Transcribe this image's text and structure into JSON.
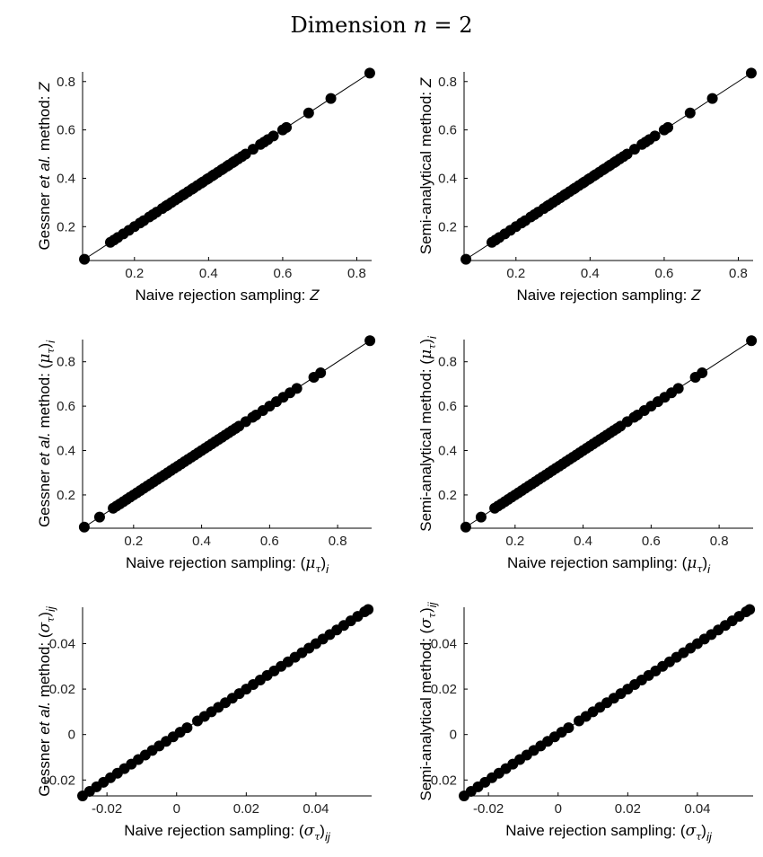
{
  "figure": {
    "title_prefix": "Dimension ",
    "title_var": "n",
    "title_suffix": " = 2"
  },
  "chart_data": [
    {
      "type": "scatter",
      "id": "p1",
      "xlabel": "Naive rejection sampling: Z",
      "ylabel": "Gessner et al. method: Z",
      "xlim": [
        0.06,
        0.84
      ],
      "ylim": [
        0.06,
        0.84
      ],
      "xticks": [
        0.2,
        0.4,
        0.6,
        0.8
      ],
      "yticks": [
        0.2,
        0.4,
        0.6,
        0.8
      ],
      "xtick_labels": [
        "0.2",
        "0.4",
        "0.6",
        "0.8"
      ],
      "ytick_labels": [
        "0.2",
        "0.4",
        "0.6",
        "0.8"
      ],
      "reference_line": [
        [
          0.06,
          0.06
        ],
        [
          0.84,
          0.84
        ]
      ],
      "x": [
        0.065,
        0.135,
        0.145,
        0.155,
        0.17,
        0.185,
        0.2,
        0.215,
        0.225,
        0.24,
        0.25,
        0.26,
        0.275,
        0.285,
        0.29,
        0.3,
        0.31,
        0.32,
        0.33,
        0.335,
        0.345,
        0.355,
        0.36,
        0.37,
        0.38,
        0.385,
        0.395,
        0.4,
        0.41,
        0.415,
        0.425,
        0.435,
        0.44,
        0.45,
        0.455,
        0.465,
        0.47,
        0.48,
        0.49,
        0.5,
        0.52,
        0.54,
        0.55,
        0.56,
        0.575,
        0.6,
        0.61,
        0.67,
        0.73,
        0.835
      ],
      "y": [
        0.065,
        0.135,
        0.145,
        0.155,
        0.17,
        0.185,
        0.2,
        0.215,
        0.225,
        0.24,
        0.25,
        0.26,
        0.275,
        0.285,
        0.29,
        0.3,
        0.31,
        0.32,
        0.33,
        0.335,
        0.345,
        0.355,
        0.36,
        0.37,
        0.38,
        0.385,
        0.395,
        0.4,
        0.41,
        0.415,
        0.425,
        0.435,
        0.44,
        0.45,
        0.455,
        0.465,
        0.47,
        0.48,
        0.49,
        0.5,
        0.52,
        0.54,
        0.55,
        0.56,
        0.575,
        0.6,
        0.61,
        0.67,
        0.73,
        0.835
      ]
    },
    {
      "type": "scatter",
      "id": "p2",
      "xlabel": "Naive rejection sampling: Z",
      "ylabel": "Semi-analytical method: Z",
      "xlim": [
        0.06,
        0.84
      ],
      "ylim": [
        0.06,
        0.84
      ],
      "xticks": [
        0.2,
        0.4,
        0.6,
        0.8
      ],
      "yticks": [
        0.2,
        0.4,
        0.6,
        0.8
      ],
      "xtick_labels": [
        "0.2",
        "0.4",
        "0.6",
        "0.8"
      ],
      "ytick_labels": [
        "0.2",
        "0.4",
        "0.6",
        "0.8"
      ],
      "reference_line": [
        [
          0.06,
          0.06
        ],
        [
          0.84,
          0.84
        ]
      ],
      "x": [
        0.065,
        0.135,
        0.145,
        0.155,
        0.17,
        0.185,
        0.2,
        0.215,
        0.225,
        0.24,
        0.25,
        0.26,
        0.275,
        0.285,
        0.29,
        0.3,
        0.31,
        0.32,
        0.33,
        0.335,
        0.345,
        0.355,
        0.36,
        0.37,
        0.38,
        0.385,
        0.395,
        0.4,
        0.41,
        0.415,
        0.425,
        0.435,
        0.44,
        0.45,
        0.455,
        0.465,
        0.47,
        0.48,
        0.49,
        0.5,
        0.52,
        0.54,
        0.55,
        0.56,
        0.575,
        0.6,
        0.61,
        0.67,
        0.73,
        0.835
      ],
      "y": [
        0.065,
        0.135,
        0.145,
        0.155,
        0.17,
        0.185,
        0.2,
        0.215,
        0.225,
        0.24,
        0.25,
        0.26,
        0.275,
        0.285,
        0.29,
        0.3,
        0.31,
        0.32,
        0.33,
        0.335,
        0.345,
        0.355,
        0.36,
        0.37,
        0.38,
        0.385,
        0.395,
        0.4,
        0.41,
        0.415,
        0.425,
        0.435,
        0.44,
        0.45,
        0.455,
        0.465,
        0.47,
        0.48,
        0.49,
        0.5,
        0.52,
        0.54,
        0.55,
        0.56,
        0.575,
        0.6,
        0.61,
        0.67,
        0.73,
        0.835
      ]
    },
    {
      "type": "scatter",
      "id": "p3",
      "xlabel": "Naive rejection sampling: (μτ)i",
      "ylabel": "Gessner et al. method: (μτ)i",
      "xlim": [
        0.05,
        0.9
      ],
      "ylim": [
        0.05,
        0.9
      ],
      "xticks": [
        0.2,
        0.4,
        0.6,
        0.8
      ],
      "yticks": [
        0.2,
        0.4,
        0.6,
        0.8
      ],
      "xtick_labels": [
        "0.2",
        "0.4",
        "0.6",
        "0.8"
      ],
      "ytick_labels": [
        "0.2",
        "0.4",
        "0.6",
        "0.8"
      ],
      "reference_line": [
        [
          0.05,
          0.05
        ],
        [
          0.9,
          0.9
        ]
      ],
      "x": [
        0.055,
        0.1,
        0.14,
        0.15,
        0.16,
        0.17,
        0.18,
        0.19,
        0.2,
        0.21,
        0.22,
        0.23,
        0.24,
        0.25,
        0.26,
        0.27,
        0.28,
        0.29,
        0.3,
        0.31,
        0.32,
        0.33,
        0.34,
        0.35,
        0.36,
        0.37,
        0.38,
        0.39,
        0.4,
        0.41,
        0.42,
        0.43,
        0.44,
        0.45,
        0.46,
        0.47,
        0.48,
        0.49,
        0.5,
        0.51,
        0.53,
        0.55,
        0.56,
        0.58,
        0.6,
        0.62,
        0.64,
        0.66,
        0.68,
        0.73,
        0.75,
        0.895
      ],
      "y": [
        0.055,
        0.1,
        0.14,
        0.15,
        0.16,
        0.17,
        0.18,
        0.19,
        0.2,
        0.21,
        0.22,
        0.23,
        0.24,
        0.25,
        0.26,
        0.27,
        0.28,
        0.29,
        0.3,
        0.31,
        0.32,
        0.33,
        0.34,
        0.35,
        0.36,
        0.37,
        0.38,
        0.39,
        0.4,
        0.41,
        0.42,
        0.43,
        0.44,
        0.45,
        0.46,
        0.47,
        0.48,
        0.49,
        0.5,
        0.51,
        0.53,
        0.55,
        0.56,
        0.58,
        0.6,
        0.62,
        0.64,
        0.66,
        0.68,
        0.73,
        0.75,
        0.895
      ]
    },
    {
      "type": "scatter",
      "id": "p4",
      "xlabel": "Naive rejection sampling: (μτ)i",
      "ylabel": "Semi-analytical method: (μτ)i",
      "xlim": [
        0.05,
        0.9
      ],
      "ylim": [
        0.05,
        0.9
      ],
      "xticks": [
        0.2,
        0.4,
        0.6,
        0.8
      ],
      "yticks": [
        0.2,
        0.4,
        0.6,
        0.8
      ],
      "xtick_labels": [
        "0.2",
        "0.4",
        "0.6",
        "0.8"
      ],
      "ytick_labels": [
        "0.2",
        "0.4",
        "0.6",
        "0.8"
      ],
      "reference_line": [
        [
          0.05,
          0.05
        ],
        [
          0.9,
          0.9
        ]
      ],
      "x": [
        0.055,
        0.1,
        0.14,
        0.15,
        0.16,
        0.17,
        0.18,
        0.19,
        0.2,
        0.21,
        0.22,
        0.23,
        0.24,
        0.25,
        0.26,
        0.27,
        0.28,
        0.29,
        0.3,
        0.31,
        0.32,
        0.33,
        0.34,
        0.35,
        0.36,
        0.37,
        0.38,
        0.39,
        0.4,
        0.41,
        0.42,
        0.43,
        0.44,
        0.45,
        0.46,
        0.47,
        0.48,
        0.49,
        0.5,
        0.51,
        0.53,
        0.55,
        0.56,
        0.58,
        0.6,
        0.62,
        0.64,
        0.66,
        0.68,
        0.73,
        0.75,
        0.895
      ],
      "y": [
        0.055,
        0.1,
        0.14,
        0.15,
        0.16,
        0.17,
        0.18,
        0.19,
        0.2,
        0.21,
        0.22,
        0.23,
        0.24,
        0.25,
        0.26,
        0.27,
        0.28,
        0.29,
        0.3,
        0.31,
        0.32,
        0.33,
        0.34,
        0.35,
        0.36,
        0.37,
        0.38,
        0.39,
        0.4,
        0.41,
        0.42,
        0.43,
        0.44,
        0.45,
        0.46,
        0.47,
        0.48,
        0.49,
        0.5,
        0.51,
        0.53,
        0.55,
        0.56,
        0.58,
        0.6,
        0.62,
        0.64,
        0.66,
        0.68,
        0.73,
        0.75,
        0.895
      ]
    },
    {
      "type": "scatter",
      "id": "p5",
      "xlabel": "Naive rejection sampling: (στ)ij",
      "ylabel": "Gessner et al. method: (στ)ij",
      "xlim": [
        -0.027,
        0.056
      ],
      "ylim": [
        -0.027,
        0.056
      ],
      "xticks": [
        -0.02,
        0,
        0.02,
        0.04
      ],
      "yticks": [
        -0.02,
        0,
        0.02,
        0.04
      ],
      "xtick_labels": [
        "-0.02",
        "0",
        "0.02",
        "0.04"
      ],
      "ytick_labels": [
        "-0.02",
        "0",
        "0.02",
        "0.04"
      ],
      "reference_line": [
        [
          -0.027,
          -0.027
        ],
        [
          0.056,
          0.056
        ]
      ],
      "x": [
        -0.027,
        -0.025,
        -0.023,
        -0.021,
        -0.019,
        -0.017,
        -0.015,
        -0.013,
        -0.011,
        -0.009,
        -0.007,
        -0.005,
        -0.003,
        -0.001,
        0.001,
        0.003,
        0.006,
        0.008,
        0.01,
        0.012,
        0.014,
        0.016,
        0.018,
        0.02,
        0.022,
        0.024,
        0.026,
        0.028,
        0.03,
        0.032,
        0.034,
        0.036,
        0.038,
        0.04,
        0.042,
        0.044,
        0.046,
        0.048,
        0.05,
        0.052,
        0.054,
        0.055
      ],
      "y": [
        -0.027,
        -0.025,
        -0.023,
        -0.021,
        -0.019,
        -0.017,
        -0.015,
        -0.013,
        -0.011,
        -0.009,
        -0.007,
        -0.005,
        -0.003,
        -0.001,
        0.001,
        0.003,
        0.006,
        0.008,
        0.01,
        0.012,
        0.014,
        0.016,
        0.018,
        0.02,
        0.022,
        0.024,
        0.026,
        0.028,
        0.03,
        0.032,
        0.034,
        0.036,
        0.038,
        0.04,
        0.042,
        0.044,
        0.046,
        0.048,
        0.05,
        0.052,
        0.054,
        0.055
      ]
    },
    {
      "type": "scatter",
      "id": "p6",
      "xlabel": "Naive rejection sampling: (στ)ij",
      "ylabel": "Semi-analytical method: (στ)ij",
      "xlim": [
        -0.027,
        0.056
      ],
      "ylim": [
        -0.027,
        0.056
      ],
      "xticks": [
        -0.02,
        0,
        0.02,
        0.04
      ],
      "yticks": [
        -0.02,
        0,
        0.02,
        0.04
      ],
      "xtick_labels": [
        "-0.02",
        "0",
        "0.02",
        "0.04"
      ],
      "ytick_labels": [
        "-0.02",
        "0",
        "0.02",
        "0.04"
      ],
      "reference_line": [
        [
          -0.027,
          -0.027
        ],
        [
          0.056,
          0.056
        ]
      ],
      "x": [
        -0.027,
        -0.025,
        -0.023,
        -0.021,
        -0.019,
        -0.017,
        -0.015,
        -0.013,
        -0.011,
        -0.009,
        -0.007,
        -0.005,
        -0.003,
        -0.001,
        0.001,
        0.003,
        0.006,
        0.008,
        0.01,
        0.012,
        0.014,
        0.016,
        0.018,
        0.02,
        0.022,
        0.024,
        0.026,
        0.028,
        0.03,
        0.032,
        0.034,
        0.036,
        0.038,
        0.04,
        0.042,
        0.044,
        0.046,
        0.048,
        0.05,
        0.052,
        0.054,
        0.055
      ],
      "y": [
        -0.027,
        -0.025,
        -0.023,
        -0.021,
        -0.019,
        -0.017,
        -0.015,
        -0.013,
        -0.011,
        -0.009,
        -0.007,
        -0.005,
        -0.003,
        -0.001,
        0.001,
        0.003,
        0.006,
        0.008,
        0.01,
        0.012,
        0.014,
        0.016,
        0.018,
        0.02,
        0.022,
        0.024,
        0.026,
        0.028,
        0.03,
        0.032,
        0.034,
        0.036,
        0.038,
        0.04,
        0.042,
        0.044,
        0.046,
        0.048,
        0.05,
        0.052,
        0.054,
        0.055
      ]
    }
  ]
}
